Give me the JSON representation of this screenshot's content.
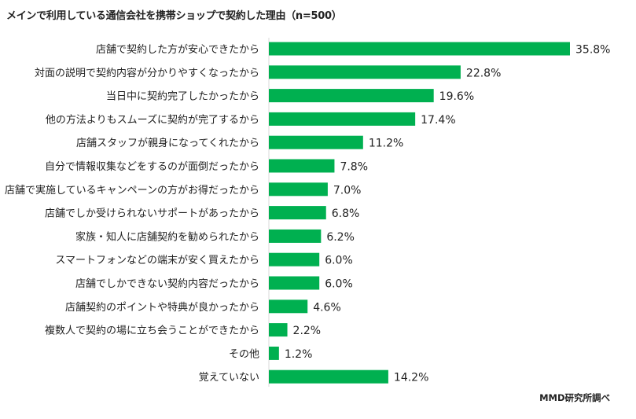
{
  "chart_data": {
    "type": "bar",
    "orientation": "horizontal",
    "title": "メインで利用している通信会社を携帯ショップで契約した理由（n=500）",
    "source": "MMD研究所調べ",
    "unit": "%",
    "color": "#00b050",
    "xlim": [
      0,
      36
    ],
    "categories": [
      "店舗で契約した方が安心できたから",
      "対面の説明で契約内容が分かりやすくなったから",
      "当日中に契約完了したかったから",
      "他の方法よりもスムーズに契約が完了するから",
      "店舗スタッフが親身になってくれたから",
      "自分で情報収集などをするのが面倒だったから",
      "店舗で実施しているキャンペーンの方がお得だったから",
      "店舗でしか受けられないサポートがあったから",
      "家族・知人に店舗契約を勧められたから",
      "スマートフォンなどの端末が安く買えたから",
      "店舗でしかできない契約内容だったから",
      "店舗契約のポイントや特典が良かったから",
      "複数人で契約の場に立ち会うことができたから",
      "その他",
      "覚えていない"
    ],
    "values": [
      35.8,
      22.8,
      19.6,
      17.4,
      11.2,
      7.8,
      7.0,
      6.8,
      6.2,
      6.0,
      6.0,
      4.6,
      2.2,
      1.2,
      14.2
    ],
    "value_labels": [
      "35.8%",
      "22.8%",
      "19.6%",
      "17.4%",
      "11.2%",
      "7.8%",
      "7.0%",
      "6.8%",
      "6.2%",
      "6.0%",
      "6.0%",
      "4.6%",
      "2.2%",
      "1.2%",
      "14.2%"
    ]
  }
}
